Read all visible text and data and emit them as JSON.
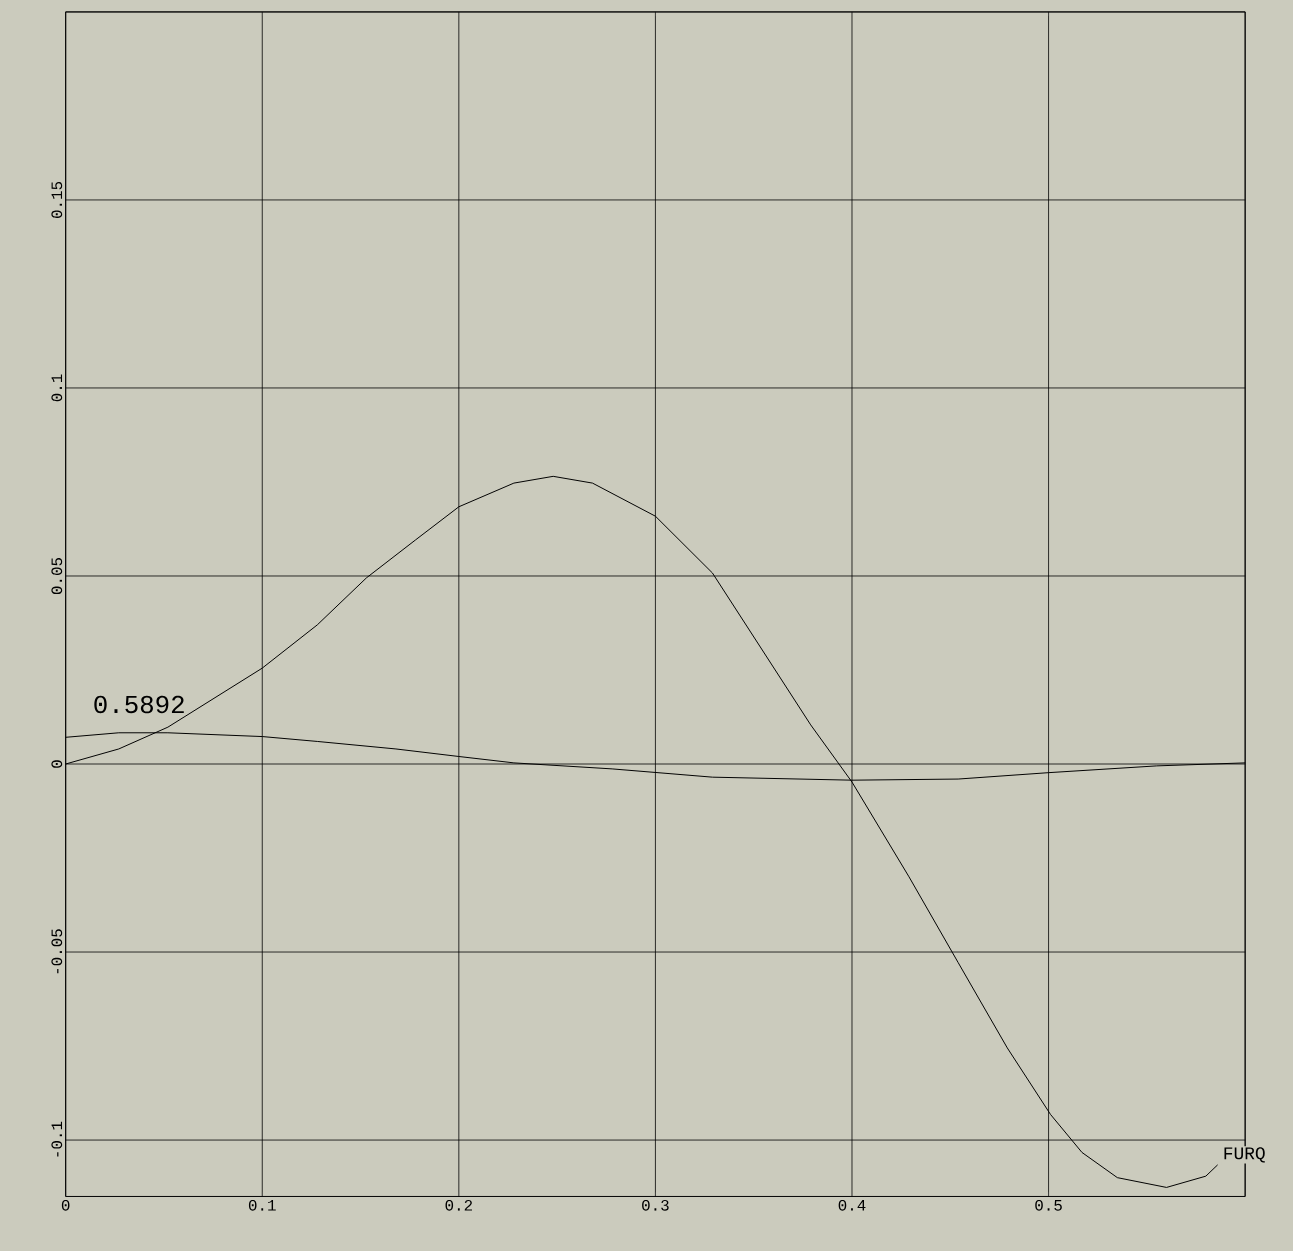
{
  "chart_data": {
    "type": "line",
    "annotations": [
      "0.5892"
    ],
    "xlim": [
      0,
      0.6
    ],
    "ylim": [
      -0.115,
      0.2
    ],
    "xticks": [
      0,
      0.1,
      0.2,
      0.3,
      0.4,
      0.5,
      {
        "value": 0.6,
        "label": null
      }
    ],
    "yticks": [
      -0.1,
      -0.05,
      0,
      0.05,
      0.1,
      0.15,
      {
        "value": 0.2,
        "label": null
      }
    ],
    "grid": true,
    "marker": "none",
    "line_style": "solid",
    "series": [
      {
        "name": "FURQ",
        "color": "#000000",
        "x": [
          0,
          0.027,
          0.052,
          0.1,
          0.128,
          0.153,
          0.178,
          0.2,
          0.228,
          0.248,
          0.268,
          0.3,
          0.329,
          0.354,
          0.379,
          0.4,
          0.429,
          0.454,
          0.479,
          0.501,
          0.517,
          0.535,
          0.56,
          0.58,
          0.586
        ],
        "values": [
          0,
          0.004,
          0.0098,
          0.0255,
          0.037,
          0.0495,
          0.0596,
          0.0684,
          0.0747,
          0.0765,
          0.0747,
          0.0659,
          0.0508,
          0.0306,
          0.0104,
          -0.0048,
          -0.03,
          -0.0528,
          -0.0755,
          -0.0932,
          -0.1033,
          -0.11,
          -0.1126,
          -0.1096,
          -0.1066
        ]
      },
      {
        "color": "#000000",
        "x": [
          0,
          0.027,
          0.052,
          0.1,
          0.128,
          0.168,
          0.2,
          0.228,
          0.278,
          0.329,
          0.4,
          0.454,
          0.5,
          0.555,
          0.6
        ],
        "values": [
          0.0071,
          0.0083,
          0.0083,
          0.0073,
          0.006,
          0.004,
          0.002,
          0.0003,
          -0.0013,
          -0.0035,
          -0.0043,
          -0.004,
          -0.0023,
          -0.0005,
          0.0003
        ]
      }
    ]
  }
}
